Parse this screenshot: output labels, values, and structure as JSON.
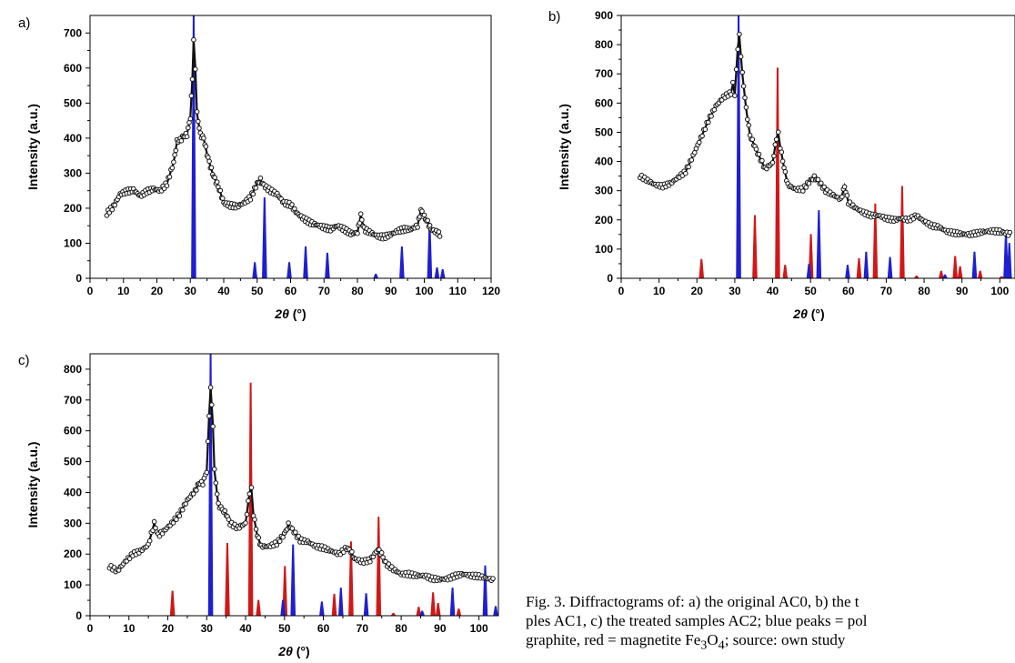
{
  "colors": {
    "blue": "#1f1fd0",
    "red": "#d01818",
    "data": "#111111"
  },
  "chart_data": [
    {
      "panel": "a)",
      "type": "line",
      "xlabel_var": "2θ",
      "xlabel_unit": "(°)",
      "ylabel": "Intensity (a.u.)",
      "xlim": [
        0,
        120
      ],
      "ylim": [
        0,
        750
      ],
      "xticks": [
        0,
        10,
        20,
        30,
        40,
        50,
        60,
        70,
        80,
        90,
        100,
        110,
        120
      ],
      "yticks": [
        0,
        100,
        200,
        300,
        400,
        500,
        600,
        700
      ],
      "series": [
        {
          "kind": "measured",
          "color": "data",
          "points": [
            [
              5,
              185
            ],
            [
              7,
              205
            ],
            [
              9,
              240
            ],
            [
              11,
              248
            ],
            [
              13,
              252
            ],
            [
              15,
              235
            ],
            [
              17,
              248
            ],
            [
              19,
              255
            ],
            [
              21,
              250
            ],
            [
              23,
              270
            ],
            [
              25,
              330
            ],
            [
              26,
              390
            ],
            [
              27,
              395
            ],
            [
              28,
              405
            ],
            [
              29,
              410
            ],
            [
              30,
              460
            ],
            [
              30.6,
              570
            ],
            [
              31,
              680
            ],
            [
              31.5,
              600
            ],
            [
              32,
              470
            ],
            [
              33,
              410
            ],
            [
              34,
              400
            ],
            [
              35,
              355
            ],
            [
              36,
              320
            ],
            [
              37,
              290
            ],
            [
              38,
              270
            ],
            [
              39,
              245
            ],
            [
              40,
              215
            ],
            [
              42,
              208
            ],
            [
              44,
              205
            ],
            [
              46,
              215
            ],
            [
              48,
              230
            ],
            [
              50,
              270
            ],
            [
              51,
              280
            ],
            [
              52,
              265
            ],
            [
              54,
              250
            ],
            [
              56,
              240
            ],
            [
              58,
              215
            ],
            [
              60,
              210
            ],
            [
              62,
              185
            ],
            [
              64,
              170
            ],
            [
              66,
              158
            ],
            [
              68,
              152
            ],
            [
              70,
              145
            ],
            [
              72,
              140
            ],
            [
              74,
              150
            ],
            [
              76,
              140
            ],
            [
              78,
              128
            ],
            [
              80,
              130
            ],
            [
              81,
              180
            ],
            [
              82,
              140
            ],
            [
              84,
              130
            ],
            [
              86,
              120
            ],
            [
              88,
              118
            ],
            [
              90,
              125
            ],
            [
              92,
              135
            ],
            [
              94,
              140
            ],
            [
              96,
              140
            ],
            [
              98,
              150
            ],
            [
              99,
              195
            ],
            [
              100,
              175
            ],
            [
              101,
              160
            ],
            [
              102,
              140
            ],
            [
              104,
              130
            ],
            [
              105,
              120
            ]
          ]
        },
        {
          "kind": "reference",
          "color": "blue",
          "peaks": [
            [
              31,
              750
            ],
            [
              49.3,
              45
            ],
            [
              52.2,
              230
            ],
            [
              59.6,
              45
            ],
            [
              64.5,
              90
            ],
            [
              71,
              72
            ],
            [
              85.5,
              12
            ],
            [
              93.3,
              90
            ],
            [
              101.6,
              158
            ],
            [
              103.8,
              30
            ],
            [
              105.5,
              25
            ]
          ]
        }
      ]
    },
    {
      "panel": "b)",
      "type": "line",
      "xlabel_var": "2θ",
      "xlabel_unit": "(°)",
      "ylabel": "Intensity (a.u.)",
      "xlim": [
        0,
        104
      ],
      "ylim": [
        0,
        900
      ],
      "xticks": [
        0,
        10,
        20,
        30,
        40,
        50,
        60,
        70,
        80,
        90,
        100
      ],
      "yticks": [
        0,
        100,
        200,
        300,
        400,
        500,
        600,
        700,
        800,
        900
      ],
      "series": [
        {
          "kind": "measured",
          "color": "data",
          "points": [
            [
              5,
              350
            ],
            [
              7,
              335
            ],
            [
              9,
              320
            ],
            [
              11,
              315
            ],
            [
              13,
              325
            ],
            [
              15,
              345
            ],
            [
              17,
              365
            ],
            [
              19,
              420
            ],
            [
              21,
              480
            ],
            [
              23,
              540
            ],
            [
              25,
              590
            ],
            [
              27,
              620
            ],
            [
              29,
              635
            ],
            [
              29.5,
              665
            ],
            [
              30,
              630
            ],
            [
              30.8,
              790
            ],
            [
              31.2,
              830
            ],
            [
              32,
              700
            ],
            [
              33,
              580
            ],
            [
              34,
              490
            ],
            [
              35,
              460
            ],
            [
              36,
              430
            ],
            [
              38,
              375
            ],
            [
              40,
              395
            ],
            [
              41,
              480
            ],
            [
              41.5,
              495
            ],
            [
              42,
              450
            ],
            [
              43,
              380
            ],
            [
              44,
              320
            ],
            [
              46,
              305
            ],
            [
              48,
              305
            ],
            [
              50,
              335
            ],
            [
              51,
              345
            ],
            [
              52,
              335
            ],
            [
              54,
              300
            ],
            [
              56,
              285
            ],
            [
              58,
              270
            ],
            [
              59,
              315
            ],
            [
              60,
              260
            ],
            [
              62,
              240
            ],
            [
              64,
              225
            ],
            [
              66,
              215
            ],
            [
              68,
              215
            ],
            [
              70,
              205
            ],
            [
              72,
              200
            ],
            [
              74,
              205
            ],
            [
              76,
              200
            ],
            [
              78,
              215
            ],
            [
              80,
              195
            ],
            [
              82,
              180
            ],
            [
              84,
              175
            ],
            [
              86,
              160
            ],
            [
              88,
              155
            ],
            [
              90,
              152
            ],
            [
              92,
              150
            ],
            [
              94,
              155
            ],
            [
              96,
              160
            ],
            [
              98,
              162
            ],
            [
              100,
              160
            ],
            [
              103,
              150
            ]
          ]
        },
        {
          "kind": "reference",
          "color": "red",
          "peaks": [
            [
              21.2,
              65
            ],
            [
              35.3,
              215
            ],
            [
              41.3,
              720
            ],
            [
              43.3,
              45
            ],
            [
              50.1,
              150
            ],
            [
              62.8,
              68
            ],
            [
              67.1,
              255
            ],
            [
              74.2,
              315
            ],
            [
              78,
              8
            ],
            [
              84.5,
              25
            ],
            [
              88.2,
              75
            ],
            [
              89.5,
              40
            ],
            [
              94.8,
              25
            ],
            [
              100.5,
              6
            ]
          ]
        },
        {
          "kind": "reference",
          "color": "blue",
          "peaks": [
            [
              31,
              900
            ],
            [
              49.6,
              48
            ],
            [
              52.2,
              232
            ],
            [
              59.8,
              45
            ],
            [
              64.7,
              90
            ],
            [
              71,
              72
            ],
            [
              85.5,
              12
            ],
            [
              93.3,
              90
            ],
            [
              101.6,
              160
            ],
            [
              102.5,
              120
            ]
          ]
        }
      ]
    },
    {
      "panel": "c)",
      "type": "line",
      "xlabel_var": "2θ",
      "xlabel_unit": "(°)",
      "ylabel": "Intensity (a.u.)",
      "xlim": [
        0,
        105
      ],
      "ylim": [
        0,
        850
      ],
      "xticks": [
        0,
        10,
        20,
        30,
        40,
        50,
        60,
        70,
        80,
        90,
        100
      ],
      "yticks": [
        0,
        100,
        200,
        300,
        400,
        500,
        600,
        700,
        800
      ],
      "series": [
        {
          "kind": "measured",
          "color": "data",
          "points": [
            [
              5,
              160
            ],
            [
              7,
              145
            ],
            [
              9,
              175
            ],
            [
              11,
              200
            ],
            [
              13,
              210
            ],
            [
              15,
              230
            ],
            [
              16.5,
              300
            ],
            [
              17.5,
              260
            ],
            [
              19,
              275
            ],
            [
              21,
              300
            ],
            [
              23,
              330
            ],
            [
              25,
              375
            ],
            [
              27,
              405
            ],
            [
              28,
              430
            ],
            [
              29,
              430
            ],
            [
              30,
              470
            ],
            [
              30.6,
              650
            ],
            [
              31,
              740
            ],
            [
              31.6,
              620
            ],
            [
              32,
              470
            ],
            [
              33,
              360
            ],
            [
              34,
              345
            ],
            [
              35,
              330
            ],
            [
              36,
              300
            ],
            [
              38,
              285
            ],
            [
              40,
              300
            ],
            [
              41,
              400
            ],
            [
              41.5,
              410
            ],
            [
              42,
              330
            ],
            [
              43,
              260
            ],
            [
              44,
              225
            ],
            [
              46,
              225
            ],
            [
              48,
              235
            ],
            [
              50,
              265
            ],
            [
              51,
              295
            ],
            [
              52,
              280
            ],
            [
              54,
              245
            ],
            [
              56,
              240
            ],
            [
              58,
              225
            ],
            [
              60,
              220
            ],
            [
              62,
              210
            ],
            [
              64,
              200
            ],
            [
              66,
              220
            ],
            [
              67,
              210
            ],
            [
              68,
              185
            ],
            [
              70,
              175
            ],
            [
              72,
              180
            ],
            [
              74,
              215
            ],
            [
              75,
              200
            ],
            [
              76,
              170
            ],
            [
              78,
              150
            ],
            [
              80,
              135
            ],
            [
              82,
              135
            ],
            [
              84,
              130
            ],
            [
              86,
              130
            ],
            [
              88,
              120
            ],
            [
              90,
              118
            ],
            [
              92,
              120
            ],
            [
              94,
              130
            ],
            [
              96,
              135
            ],
            [
              98,
              130
            ],
            [
              100,
              128
            ],
            [
              104,
              115
            ]
          ]
        },
        {
          "kind": "reference",
          "color": "red",
          "peaks": [
            [
              21.2,
              80
            ],
            [
              35.3,
              235
            ],
            [
              41.3,
              755
            ],
            [
              43.3,
              50
            ],
            [
              50.1,
              160
            ],
            [
              62.8,
              70
            ],
            [
              67.1,
              240
            ],
            [
              74.2,
              320
            ],
            [
              78,
              8
            ],
            [
              84.5,
              28
            ],
            [
              88.2,
              75
            ],
            [
              89.5,
              40
            ],
            [
              94.8,
              22
            ]
          ]
        },
        {
          "kind": "reference",
          "color": "blue",
          "peaks": [
            [
              31,
              850
            ],
            [
              49.6,
              50
            ],
            [
              52.2,
              230
            ],
            [
              59.6,
              45
            ],
            [
              64.5,
              90
            ],
            [
              71,
              72
            ],
            [
              85.4,
              15
            ],
            [
              93.2,
              90
            ],
            [
              101.6,
              162
            ],
            [
              104.3,
              30
            ]
          ]
        }
      ]
    }
  ],
  "caption": {
    "line1": "Fig. 3. Diffractograms of: a) the original AC0, b) the t",
    "line2": "ples AC1, c) the treated samples AC2; blue peaks = pol",
    "line3_pre": "graphite, red = magnetite Fe",
    "line3_sub1": "3",
    "line3_mid": "O",
    "line3_sub2": "4",
    "line3_post": "; source: own study"
  }
}
